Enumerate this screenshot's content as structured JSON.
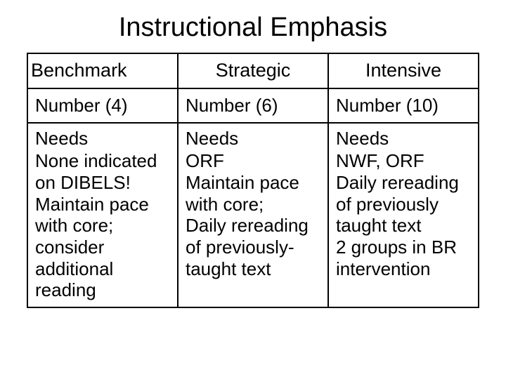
{
  "slide": {
    "title": "Instructional Emphasis",
    "table": {
      "type": "table",
      "border_color": "#000000",
      "background_color": "#ffffff",
      "text_color": "#000000",
      "title_fontsize": 38,
      "header_fontsize": 27,
      "cell_fontsize": 26,
      "columns": [
        {
          "label": "Benchmark",
          "align": "center"
        },
        {
          "label": "Strategic",
          "align": "center"
        },
        {
          "label": "Intensive",
          "align": "center"
        }
      ],
      "count_row": {
        "benchmark": "Number (4)",
        "strategic": "Number (6)",
        "intensive": "Number (10)"
      },
      "needs_row": {
        "label": "Needs",
        "benchmark": "None indicated on DIBELS!\nMaintain pace with core; consider additional reading",
        "strategic": "ORF\nMaintain pace with core;\nDaily rereading of previously-taught text",
        "intensive": "NWF, ORF\nDaily rereading of previously taught text\n2 groups in BR intervention"
      }
    }
  }
}
